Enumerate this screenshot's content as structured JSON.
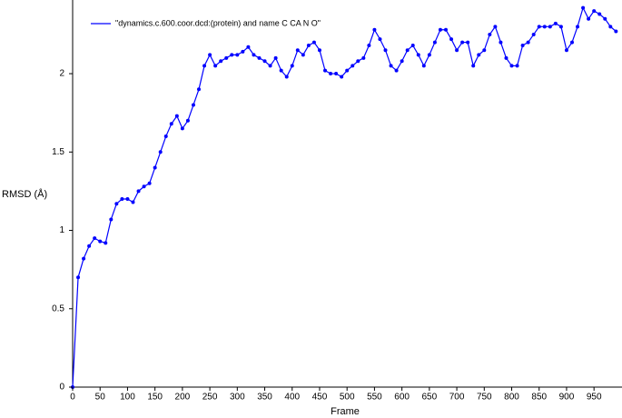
{
  "chart_data": {
    "type": "line",
    "xlabel": "Frame",
    "ylabel": "RMSD (Å)",
    "xlim": [
      0,
      1001
    ],
    "ylim": [
      0,
      2.47
    ],
    "xticks": [
      0,
      50,
      100,
      150,
      200,
      250,
      300,
      350,
      400,
      450,
      500,
      550,
      600,
      650,
      700,
      750,
      800,
      850,
      900,
      950
    ],
    "yticks": [
      0,
      0.5,
      1,
      1.5,
      2
    ],
    "legend": "top-left",
    "series": [
      {
        "name": "\"dynamics.c.600.coor.dcd:(protein) and name C CA N O\"",
        "color": "#0000ff",
        "x": [
          0,
          10,
          20,
          30,
          40,
          50,
          60,
          70,
          80,
          90,
          100,
          110,
          120,
          130,
          140,
          150,
          160,
          170,
          180,
          190,
          200,
          210,
          220,
          230,
          240,
          250,
          260,
          270,
          280,
          290,
          300,
          310,
          320,
          330,
          340,
          350,
          360,
          370,
          380,
          390,
          400,
          410,
          420,
          430,
          440,
          450,
          460,
          470,
          480,
          490,
          500,
          510,
          520,
          530,
          540,
          550,
          560,
          570,
          580,
          590,
          600,
          610,
          620,
          630,
          640,
          650,
          660,
          670,
          680,
          690,
          700,
          710,
          720,
          730,
          740,
          750,
          760,
          770,
          780,
          790,
          800,
          810,
          820,
          830,
          840,
          850,
          860,
          870,
          880,
          890,
          900,
          910,
          920,
          930,
          940,
          950,
          960,
          970,
          980,
          990
        ],
        "values": [
          0,
          0.7,
          0.82,
          0.9,
          0.95,
          0.93,
          0.92,
          1.07,
          1.17,
          1.2,
          1.2,
          1.18,
          1.25,
          1.28,
          1.3,
          1.4,
          1.5,
          1.6,
          1.68,
          1.73,
          1.65,
          1.7,
          1.8,
          1.9,
          2.05,
          2.12,
          2.05,
          2.08,
          2.1,
          2.12,
          2.12,
          2.14,
          2.17,
          2.12,
          2.1,
          2.08,
          2.05,
          2.1,
          2.02,
          1.98,
          2.05,
          2.15,
          2.12,
          2.18,
          2.2,
          2.15,
          2.02,
          2.0,
          2.0,
          1.98,
          2.02,
          2.05,
          2.08,
          2.1,
          2.18,
          2.28,
          2.22,
          2.15,
          2.05,
          2.02,
          2.08,
          2.15,
          2.18,
          2.12,
          2.05,
          2.12,
          2.2,
          2.28,
          2.28,
          2.22,
          2.15,
          2.2,
          2.2,
          2.05,
          2.12,
          2.15,
          2.25,
          2.3,
          2.2,
          2.1,
          2.05,
          2.05,
          2.18,
          2.2,
          2.25,
          2.3,
          2.3,
          2.3,
          2.32,
          2.3,
          2.15,
          2.2,
          2.3,
          2.42,
          2.35,
          2.4,
          2.38,
          2.35,
          2.3,
          2.27
        ]
      }
    ]
  }
}
